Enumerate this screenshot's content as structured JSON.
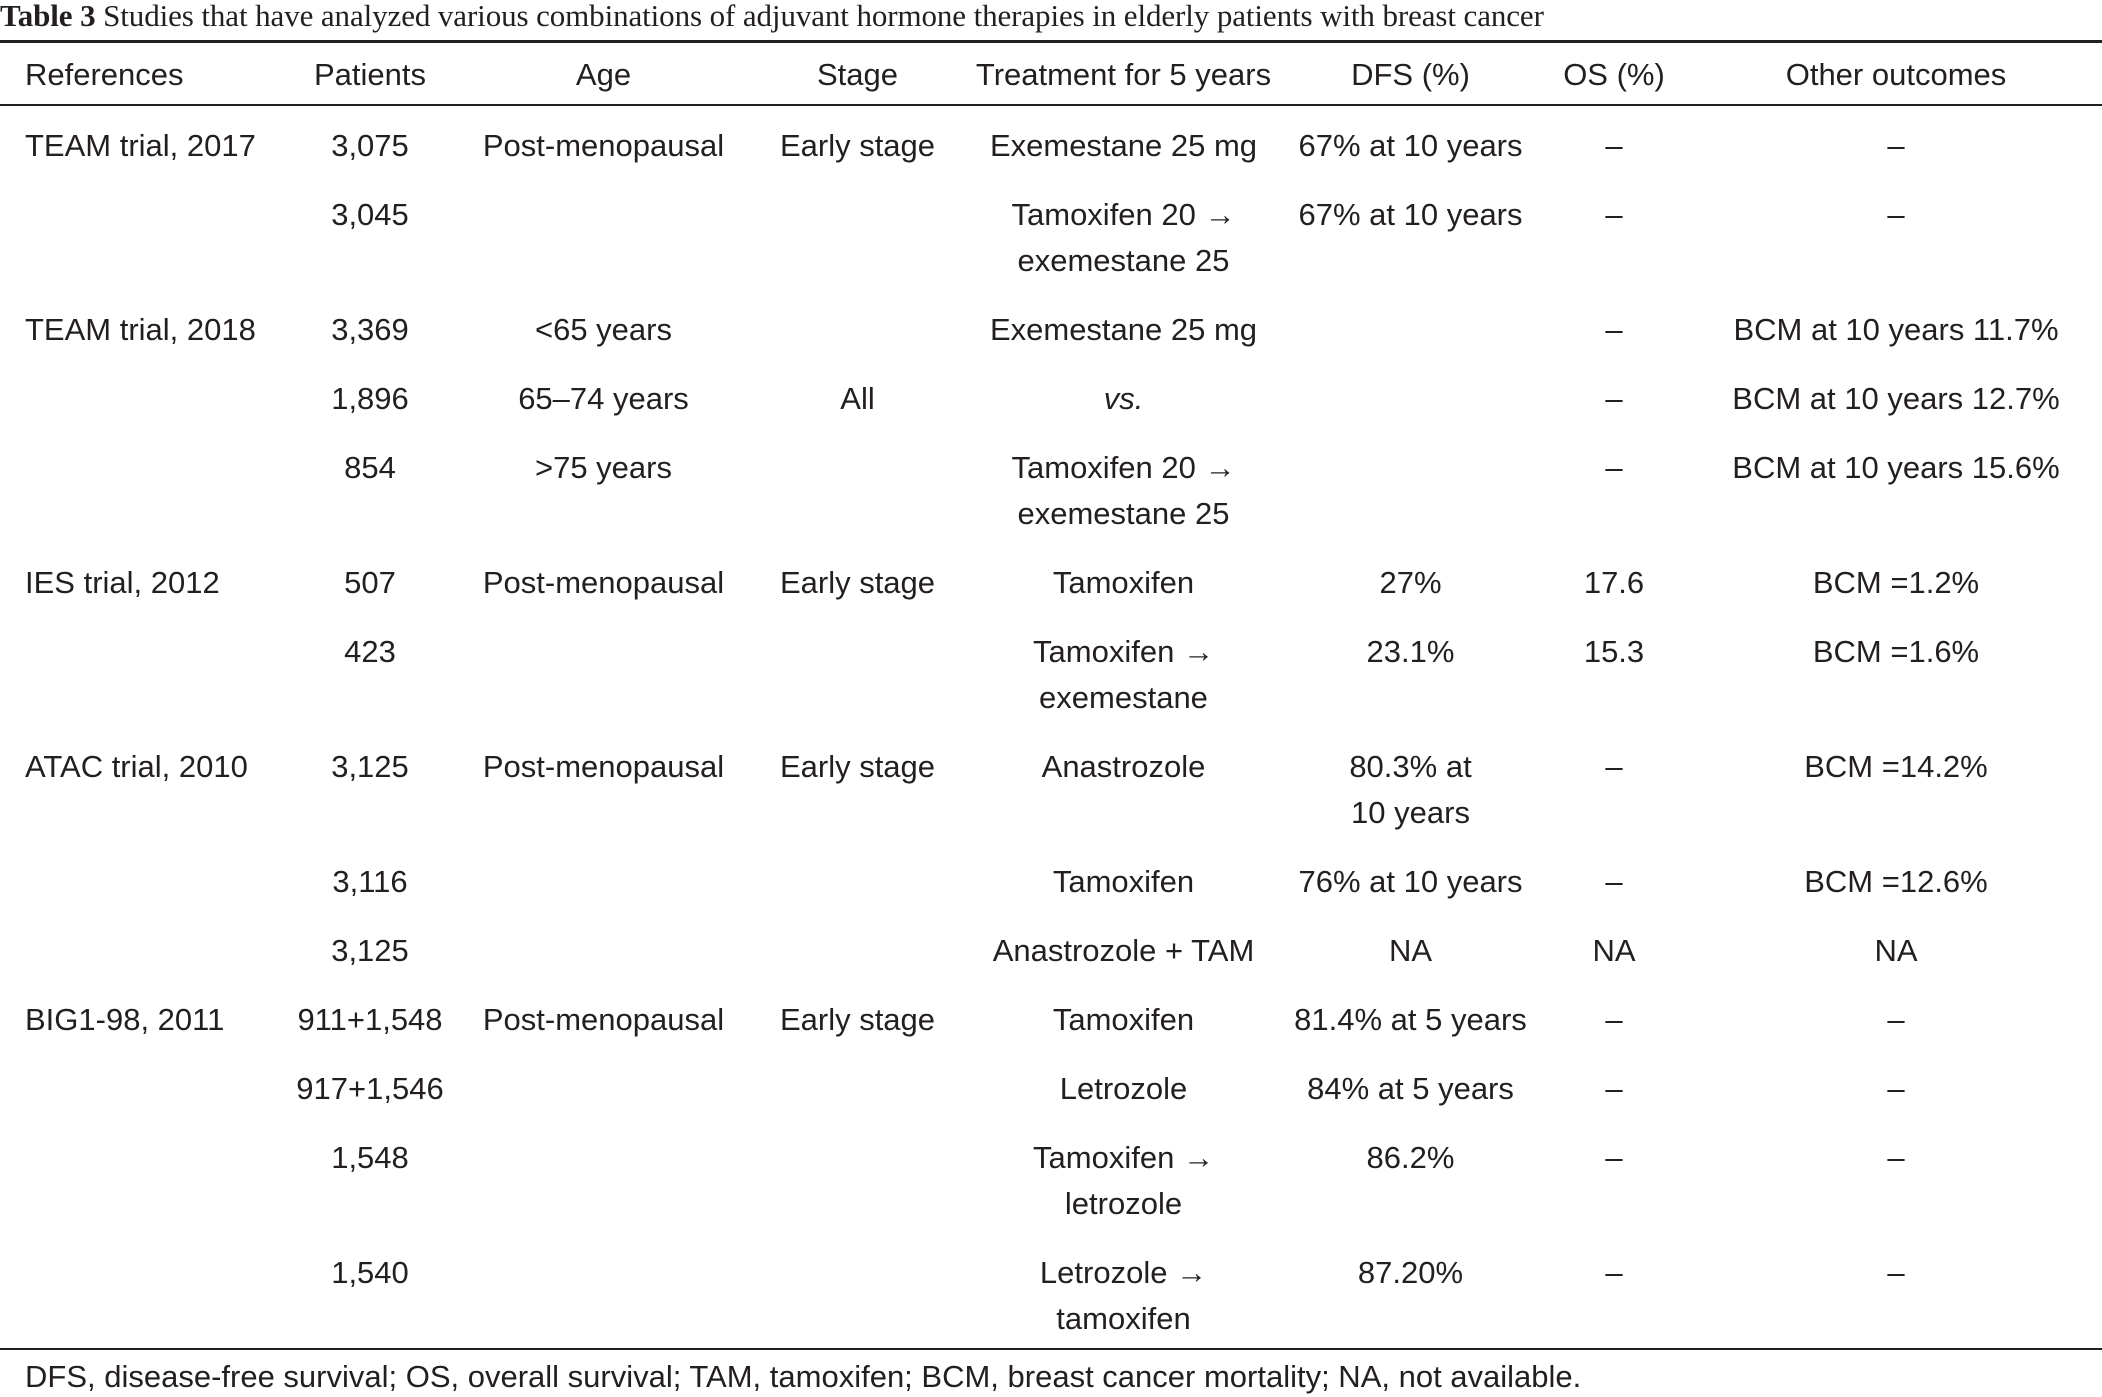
{
  "caption": {
    "label": "Table 3",
    "text": "Studies that have analyzed various combinations of adjuvant hormone therapies in elderly patients with breast cancer"
  },
  "headers": [
    "References",
    "Patients",
    "Age",
    "Stage",
    "Treatment for 5 years",
    "DFS (%)",
    "OS (%)",
    "Other outcomes"
  ],
  "rows": [
    {
      "ref": "TEAM trial, 2017",
      "patients": "3,075",
      "age": "Post-menopausal",
      "stage": "Early stage",
      "treatment": [
        "Exemestane 25 mg"
      ],
      "dfs": [
        "67% at 10 years"
      ],
      "os": "–",
      "other": "–"
    },
    {
      "ref": "",
      "patients": "3,045",
      "age": "",
      "stage": "",
      "treatment": [
        "Tamoxifen 20 →",
        "exemestane 25"
      ],
      "dfs": [
        "67% at 10 years"
      ],
      "os": "–",
      "other": "–"
    },
    {
      "ref": "TEAM trial, 2018",
      "patients": "3,369",
      "age": "<65 years",
      "stage": "",
      "treatment": [
        "Exemestane 25 mg"
      ],
      "dfs": [
        ""
      ],
      "os": "–",
      "other": "BCM at 10 years 11.7%"
    },
    {
      "ref": "",
      "patients": "1,896",
      "age": "65–74 years",
      "stage": "All",
      "treatment": [
        "vs."
      ],
      "dfs": [
        ""
      ],
      "os": "–",
      "other": "BCM at 10 years 12.7%"
    },
    {
      "ref": "",
      "patients": "854",
      "age": ">75 years",
      "stage": "",
      "treatment": [
        "Tamoxifen 20 →",
        "exemestane 25"
      ],
      "dfs": [
        ""
      ],
      "os": "–",
      "other": "BCM at 10 years 15.6%"
    },
    {
      "ref": "IES trial, 2012",
      "patients": "507",
      "age": "Post-menopausal",
      "stage": "Early stage",
      "treatment": [
        "Tamoxifen"
      ],
      "dfs": [
        "27%"
      ],
      "os": "17.6",
      "other": "BCM =1.2%"
    },
    {
      "ref": "",
      "patients": "423",
      "age": "",
      "stage": "",
      "treatment": [
        "Tamoxifen →",
        "exemestane"
      ],
      "dfs": [
        "23.1%"
      ],
      "os": "15.3",
      "other": "BCM =1.6%"
    },
    {
      "ref": "ATAC trial, 2010",
      "patients": "3,125",
      "age": "Post-menopausal",
      "stage": "Early stage",
      "treatment": [
        "Anastrozole"
      ],
      "dfs": [
        "80.3% at",
        "10 years"
      ],
      "os": "–",
      "other": "BCM =14.2%"
    },
    {
      "ref": "",
      "patients": "3,116",
      "age": "",
      "stage": "",
      "treatment": [
        "Tamoxifen"
      ],
      "dfs": [
        "76% at 10 years"
      ],
      "os": "–",
      "other": "BCM =12.6%"
    },
    {
      "ref": "",
      "patients": "3,125",
      "age": "",
      "stage": "",
      "treatment": [
        "Anastrozole + TAM"
      ],
      "dfs": [
        "NA"
      ],
      "os": "NA",
      "other": "NA"
    },
    {
      "ref": "BIG1-98, 2011",
      "patients": "911+1,548",
      "age": "Post-menopausal",
      "stage": "Early stage",
      "treatment": [
        "Tamoxifen"
      ],
      "dfs": [
        "81.4% at 5 years"
      ],
      "os": "–",
      "other": "–"
    },
    {
      "ref": "",
      "patients": "917+1,546",
      "age": "",
      "stage": "",
      "treatment": [
        "Letrozole"
      ],
      "dfs": [
        "84% at 5 years"
      ],
      "os": "–",
      "other": "–"
    },
    {
      "ref": "",
      "patients": "1,548",
      "age": "",
      "stage": "",
      "treatment": [
        "Tamoxifen →",
        "letrozole"
      ],
      "dfs": [
        "86.2%"
      ],
      "os": "–",
      "other": "–"
    },
    {
      "ref": "",
      "patients": "1,540",
      "age": "",
      "stage": "",
      "treatment": [
        "Letrozole →",
        "tamoxifen"
      ],
      "dfs": [
        "87.20%"
      ],
      "os": "–",
      "other": "–"
    }
  ],
  "footnote": "DFS, disease-free survival; OS, overall survival; TAM, tamoxifen; BCM, breast cancer mortality; NA, not available."
}
